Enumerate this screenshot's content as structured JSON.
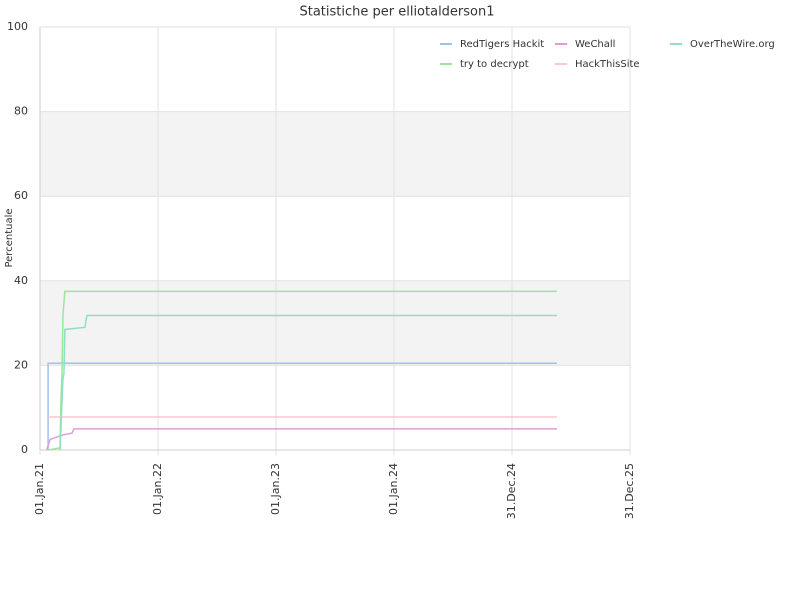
{
  "chart_data": {
    "type": "line",
    "title": "Statistiche per elliotalderson1",
    "ylabel": "Percentuale",
    "xlim": [
      "2021-01-01",
      "2025-12-31"
    ],
    "xticks": [
      {
        "value": "2021-01-01",
        "label": "01.Jan.21"
      },
      {
        "value": "2022-01-01",
        "label": "01.Jan.22"
      },
      {
        "value": "2023-01-01",
        "label": "01.Jan.23"
      },
      {
        "value": "2024-01-01",
        "label": "01.Jan.24"
      },
      {
        "value": "2024-12-31",
        "label": "31.Dec.24"
      },
      {
        "value": "2025-12-31",
        "label": "31.Dec.25"
      }
    ],
    "ylim": [
      0,
      100
    ],
    "yticks": [
      0,
      20,
      40,
      60,
      80,
      100
    ],
    "grid": true,
    "legend": "upper right",
    "series": [
      {
        "name": "RedTigers Hackit",
        "color": "#9cc3ee",
        "x": [
          "2021-01-26",
          "2021-01-26",
          "2025-05-19"
        ],
        "values": [
          0,
          20.5,
          20.5
        ]
      },
      {
        "name": "try to decrypt",
        "color": "#9be69b",
        "x": [
          "2021-01-26",
          "2021-03-04",
          "2021-03-07",
          "2021-03-10",
          "2021-03-13",
          "2021-03-19",
          "2025-05-19"
        ],
        "values": [
          0,
          0.5,
          12,
          18,
          32,
          37.5,
          37.5
        ]
      },
      {
        "name": "WeChall",
        "color": "#e59bd0",
        "x": [
          "2021-01-22",
          "2021-02-01",
          "2021-03-10",
          "2021-04-10",
          "2021-04-16",
          "2025-05-19"
        ],
        "values": [
          0,
          2.5,
          3.5,
          4,
          5,
          5
        ]
      },
      {
        "name": "HackThisSite",
        "color": "#f7c6d0",
        "x": [
          "2021-01-26",
          "2025-05-19"
        ],
        "values": [
          7.8,
          7.8
        ]
      },
      {
        "name": "OverTheWire.org",
        "color": "#8fdfc0",
        "x": [
          "2021-03-04",
          "2021-03-13",
          "2021-03-16",
          "2021-03-19",
          "2021-05-20",
          "2021-05-26",
          "2025-05-19"
        ],
        "values": [
          0,
          17,
          18,
          28.5,
          29,
          31.8,
          31.8
        ]
      }
    ]
  }
}
